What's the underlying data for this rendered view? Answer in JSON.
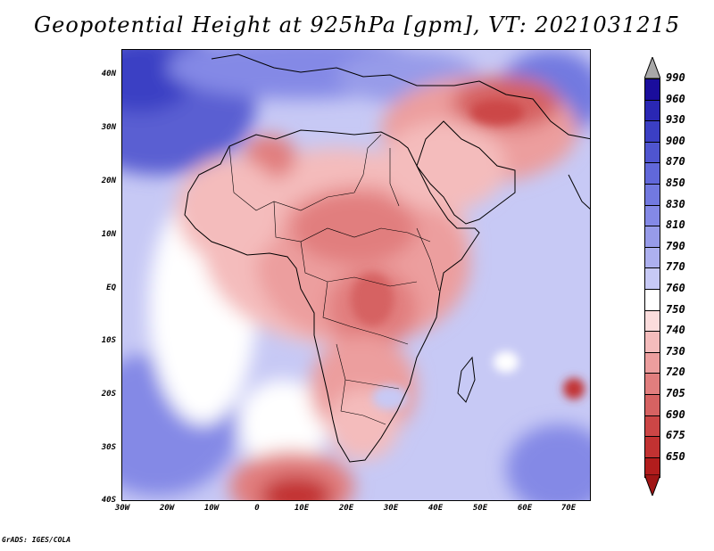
{
  "title": "Geopotential Height at 925hPa [gpm], VT: 2021031215",
  "credit": "GrADS: IGES/COLA",
  "y_axis": [
    "40N",
    "30N",
    "20N",
    "10N",
    "EQ",
    "10S",
    "20S",
    "30S",
    "40S"
  ],
  "x_axis": [
    "30W",
    "20W",
    "10W",
    "0",
    "10E",
    "20E",
    "30E",
    "40E",
    "50E",
    "60E",
    "70E"
  ],
  "colorbar": {
    "labels": [
      "990",
      "960",
      "930",
      "900",
      "870",
      "850",
      "830",
      "810",
      "790",
      "770",
      "760",
      "750",
      "740",
      "730",
      "720",
      "705",
      "690",
      "675",
      "650"
    ],
    "colors": [
      "#1a0d9c",
      "#2a27b4",
      "#3b3fc4",
      "#4f55d0",
      "#6168da",
      "#7279e0",
      "#8489e6",
      "#979be9",
      "#adb0ef",
      "#c7c9f5",
      "#ffffff",
      "#fbdcdc",
      "#f4bcbc",
      "#ec9e9e",
      "#e17e7e",
      "#d66262",
      "#cc4646",
      "#c23232",
      "#b21d1d"
    ],
    "top_arrow_color": "#a8a8a8",
    "bottom_arrow_color": "#a01515"
  },
  "field": {
    "background": "#c7c9f5"
  }
}
